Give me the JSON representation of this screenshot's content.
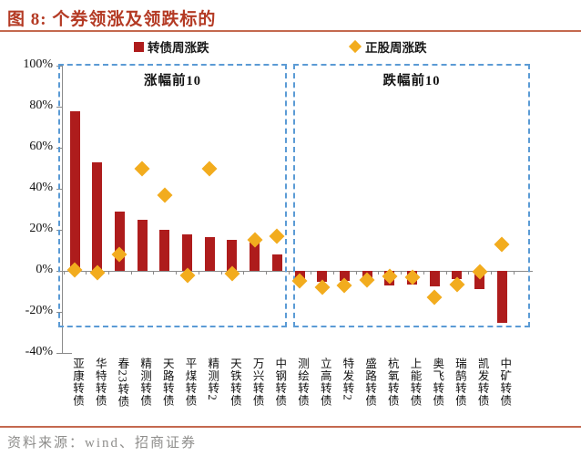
{
  "header": {
    "title": "图 8: 个券领涨及领跌标的"
  },
  "legend": {
    "bond_label": "转债周涨跌",
    "stock_label": "正股周涨跌"
  },
  "footer": {
    "source": "资料来源：wind、招商证券"
  },
  "colors": {
    "title": "#B43A24",
    "rule": "#C4694F",
    "footer_text": "#8E8D8B",
    "axis": "#8a8a8a",
    "panel_border": "#5B9BD5",
    "bar": "#AE1C1C",
    "marker": "#F2AC1E"
  },
  "chart_data": {
    "type": "bar",
    "title": "个券领涨及领跌标的",
    "xlabel": "",
    "ylabel": "",
    "ylim": [
      -40,
      100
    ],
    "yticks": [
      "100%",
      "80%",
      "60%",
      "40%",
      "20%",
      "0%",
      "-20%",
      "-40%"
    ],
    "grid": false,
    "legend_position": "top",
    "panels": [
      {
        "title": "涨幅前10",
        "category_range": [
          0,
          9
        ]
      },
      {
        "title": "跌幅前10",
        "category_range": [
          10,
          19
        ]
      }
    ],
    "categories": [
      "亚康转债",
      "华特转债",
      "春23转债",
      "精测转债",
      "天路转债",
      "平煤转债",
      "精测转2",
      "天铁转债",
      "万兴转债",
      "中钢转债",
      "测绘转债",
      "立高转债",
      "特发转2",
      "盛路转债",
      "杭氧转债",
      "上能转债",
      "奥飞转债",
      "瑞鹄转债",
      "凯发转债",
      "中矿转债"
    ],
    "series": [
      {
        "name": "转债周涨跌",
        "type": "bar",
        "color": "#AE1C1C",
        "values": [
          78,
          53,
          29,
          25,
          20,
          18,
          16.5,
          15,
          14,
          8,
          -4,
          -5.5,
          -5,
          -3.5,
          -7,
          -6.5,
          -7.5,
          -4,
          -9,
          -25.5
        ]
      },
      {
        "name": "正股周涨跌",
        "type": "scatter",
        "color": "#F2AC1E",
        "values": [
          0.5,
          -1,
          8,
          50,
          37,
          -2,
          50,
          -1.5,
          15,
          17,
          -5,
          -8,
          -7,
          -4.5,
          -2.5,
          -3,
          -13,
          -6.5,
          -0.5,
          13
        ]
      }
    ]
  }
}
